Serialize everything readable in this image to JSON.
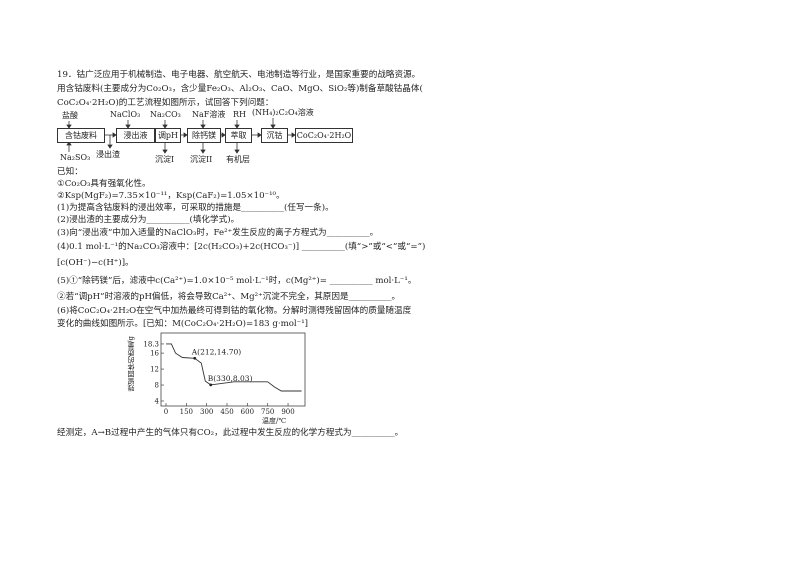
{
  "question": {
    "intro": [
      "19．钴广泛应用于机械制造、电子电器、航空航天、电池制造等行业，是国家重要的战略资源。",
      "用含钴废料(主要成分为Co₂O₃，含少量Fe₂O₃、Al₂O₃、CaO、MgO、SiO₂等)制备草酸钴晶体(",
      "CoC₂O₄·2H₂O)的工艺流程如图所示，试回答下列问题："
    ],
    "flow": {
      "boxes": [
        "含钴废料",
        "浸出液",
        "调pH",
        "除钙镁",
        "萃取",
        "沉钴",
        "CoC₂O₄·2H₂O"
      ],
      "inputs": [
        "盐酸",
        "NaClO₃",
        "Na₂CO₃",
        "NaF溶液",
        "RH",
        "(NH₄)₂C₂O₄溶液"
      ],
      "bottom_input": "Na₂SO₃",
      "outputs": [
        "浸出渣",
        "沉淀I",
        "沉淀II",
        "有机层"
      ]
    },
    "known_label": "已知：",
    "known": [
      "①Co₂O₃具有强氧化性。",
      "②Ksp(MgF₂)=7.35×10⁻¹¹，Ksp(CaF₂)=1.05×10⁻¹⁰。"
    ],
    "parts": [
      "(1)为提高含钴废料的浸出效率，可采取的措施是__________(任写一条)。",
      "(2)浸出渣的主要成分为__________(填化学式)。",
      "(3)向“浸出液”中加入适量的NaClO₃时，Fe²⁺发生反应的离子方程式为__________。",
      "(4)0.1 mol·L⁻¹的Na₂CO₃溶液中：[2c(H₂CO₃)+2c(HCO₃⁻)] __________(填“>”或“<”或“=”)",
      "[c(OH⁻)−c(H⁺)]。",
      "(5)①“除钙镁”后，滤液中c(Ca²⁺)=1.0×10⁻⁵ mol·L⁻¹时，c(Mg²⁺)= __________ mol·L⁻¹。",
      "②若“调pH”时溶液的pH偏低，将会导致Ca²⁺、Mg²⁺沉淀不完全，其原因是__________。",
      "(6)将CoC₂O₄·2H₂O在空气中加热最终可得到钴的氧化物。分解时测得残留固体的质量随温度",
      "变化的曲线如图所示。[已知：M(CoC₂O₄·2H₂O)=183 g·mol⁻¹]"
    ],
    "final": "经测定，A→B过程中产生的气体只有CO₂，此过程中发生反应的化学方程式为__________。"
  },
  "chart_data": {
    "type": "line",
    "xlabel": "温度/℃",
    "ylabel": "残留固体的质量/g",
    "x_ticks": [
      0,
      150,
      300,
      450,
      600,
      750,
      900
    ],
    "y_ticks": [
      4,
      8,
      12,
      16,
      18.3
    ],
    "xlim": [
      0,
      1000
    ],
    "ylim": [
      4,
      18.3
    ],
    "series": [
      {
        "x": [
          0,
          40,
          70,
          120,
          212,
          260,
          290,
          330,
          500,
          750,
          800,
          850,
          1000
        ],
        "y": [
          18.3,
          18.3,
          16,
          14.9,
          14.7,
          13.5,
          9,
          8.03,
          8.8,
          8.8,
          7.5,
          6.5,
          6.5
        ]
      }
    ],
    "annotations": [
      {
        "text": "A(212,14.70)",
        "x": 212,
        "y": 14.7
      },
      {
        "text": "B(330,8.03)",
        "x": 330,
        "y": 8.03
      }
    ]
  }
}
